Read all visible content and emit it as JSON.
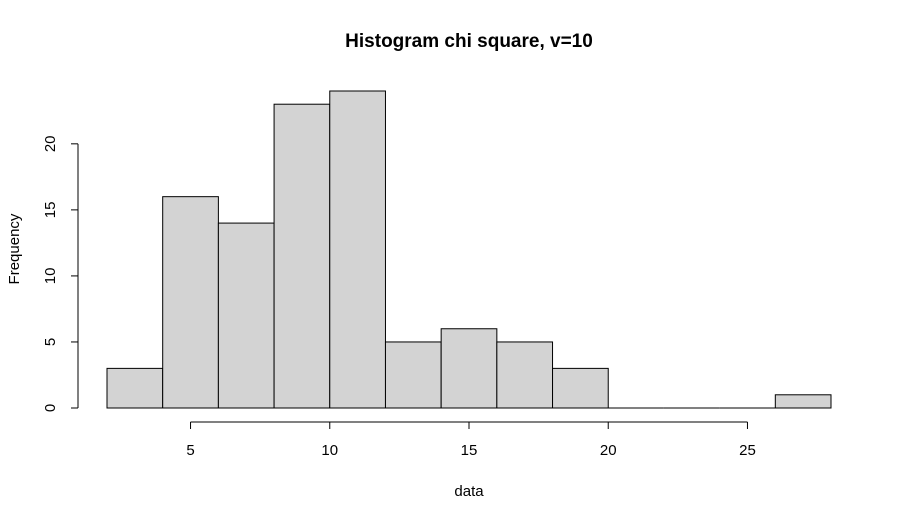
{
  "chart_data": {
    "type": "bar",
    "title": "Histogram chi square, v=10",
    "xlabel": "data",
    "ylabel": "Frequency",
    "bins": [
      {
        "x0": 2,
        "x1": 4,
        "count": 3
      },
      {
        "x0": 4,
        "x1": 6,
        "count": 16
      },
      {
        "x0": 6,
        "x1": 8,
        "count": 14
      },
      {
        "x0": 8,
        "x1": 10,
        "count": 23
      },
      {
        "x0": 10,
        "x1": 12,
        "count": 24
      },
      {
        "x0": 12,
        "x1": 14,
        "count": 5
      },
      {
        "x0": 14,
        "x1": 16,
        "count": 6
      },
      {
        "x0": 16,
        "x1": 18,
        "count": 5
      },
      {
        "x0": 18,
        "x1": 20,
        "count": 3
      },
      {
        "x0": 20,
        "x1": 22,
        "count": 0
      },
      {
        "x0": 22,
        "x1": 24,
        "count": 0
      },
      {
        "x0": 24,
        "x1": 26,
        "count": 0
      },
      {
        "x0": 26,
        "x1": 28,
        "count": 1
      }
    ],
    "xticks": [
      5,
      10,
      15,
      20,
      25
    ],
    "yticks": [
      0,
      5,
      10,
      15,
      20
    ],
    "xlim": [
      2,
      28
    ],
    "ylim": [
      0,
      24
    ],
    "bar_color": "#d3d3d3",
    "grid": false
  }
}
